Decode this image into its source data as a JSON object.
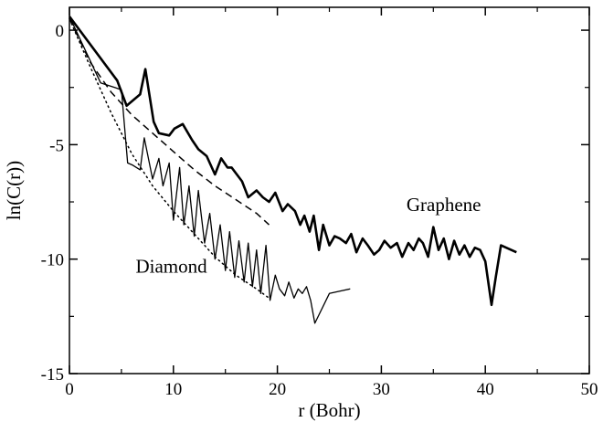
{
  "chart_data": {
    "type": "line",
    "title": "",
    "xlabel": "r (Bohr)",
    "ylabel": "ln(C(r))",
    "xlim": [
      0,
      50
    ],
    "ylim": [
      -15,
      1
    ],
    "xticks": [
      0,
      10,
      20,
      30,
      40,
      50
    ],
    "yticks": [
      0,
      -5,
      -10,
      -15
    ],
    "grid": false,
    "legend": "none",
    "annotations": [
      {
        "text": "Graphene",
        "x": 36.0,
        "y": -7.9
      },
      {
        "text": "Diamond",
        "x": 9.8,
        "y": -10.6
      }
    ],
    "series": [
      {
        "style": "thick-solid",
        "color": "#000000",
        "x": [
          0,
          4.6,
          5.5,
          6.8,
          7.3,
          8.1,
          8.6,
          9.6,
          10.1,
          10.9,
          11.8,
          12.4,
          13.2,
          14.0,
          14.6,
          15.2,
          15.6,
          16.6,
          17.2,
          18.0,
          18.6,
          19.2,
          19.8,
          20.5,
          21.0,
          21.7,
          22.2,
          22.6,
          23.1,
          23.5,
          24.0,
          24.4,
          25.0,
          25.5,
          26.0,
          26.6,
          27.1,
          27.6,
          28.2,
          28.7,
          29.3,
          29.8,
          30.3,
          30.9,
          31.5,
          32.0,
          32.6,
          33.1,
          33.6,
          34.0,
          34.5,
          35.0,
          35.5,
          36.0,
          36.5,
          37.0,
          37.5,
          38.0,
          38.5,
          39.0,
          39.5,
          40.0,
          40.6,
          41.0,
          41.5,
          43.0
        ],
        "y": [
          0.6,
          -2.2,
          -3.3,
          -2.8,
          -1.7,
          -4.0,
          -4.5,
          -4.6,
          -4.3,
          -4.1,
          -4.8,
          -5.2,
          -5.5,
          -6.3,
          -5.6,
          -6.0,
          -6.0,
          -6.6,
          -7.3,
          -7.0,
          -7.3,
          -7.5,
          -7.1,
          -7.9,
          -7.6,
          -7.9,
          -8.5,
          -8.1,
          -8.8,
          -8.1,
          -9.6,
          -8.5,
          -9.4,
          -9.0,
          -9.1,
          -9.3,
          -8.9,
          -9.7,
          -9.1,
          -9.4,
          -9.8,
          -9.6,
          -9.2,
          -9.5,
          -9.3,
          -9.9,
          -9.3,
          -9.6,
          -9.1,
          -9.3,
          -9.9,
          -8.6,
          -9.6,
          -9.1,
          -10.0,
          -9.2,
          -9.8,
          -9.4,
          -9.9,
          -9.5,
          -9.6,
          -10.1,
          -12.0,
          -10.8,
          -9.4,
          -9.7
        ]
      },
      {
        "style": "thin-solid",
        "color": "#000000",
        "x": [
          0,
          3.0,
          5.0,
          5.6,
          6.1,
          6.8,
          7.2,
          8.0,
          8.6,
          9.0,
          9.6,
          10.0,
          10.6,
          11.0,
          11.5,
          12.0,
          12.4,
          13.0,
          13.5,
          14.0,
          14.5,
          15.0,
          15.4,
          15.9,
          16.3,
          16.8,
          17.2,
          17.6,
          18.0,
          18.4,
          18.9,
          19.3,
          19.8,
          20.2,
          20.7,
          21.1,
          21.6,
          22.0,
          22.4,
          22.8,
          23.2,
          23.6,
          25.0,
          26.0,
          27.0
        ],
        "y": [
          0.6,
          -2.3,
          -2.6,
          -5.8,
          -5.9,
          -6.1,
          -4.7,
          -6.5,
          -5.6,
          -6.8,
          -5.8,
          -8.3,
          -6.0,
          -8.5,
          -6.8,
          -9.0,
          -7.0,
          -9.3,
          -8.0,
          -10.0,
          -8.5,
          -10.5,
          -8.8,
          -10.8,
          -9.2,
          -11.0,
          -9.3,
          -11.2,
          -9.6,
          -11.5,
          -9.4,
          -11.8,
          -10.7,
          -11.3,
          -11.6,
          -11.0,
          -11.7,
          -11.3,
          -11.5,
          -11.2,
          -11.8,
          -12.8,
          -11.5,
          -11.4,
          -11.3
        ]
      },
      {
        "style": "dashed",
        "color": "#000000",
        "x": [
          0,
          2,
          4,
          6,
          8,
          10,
          12,
          14,
          16,
          18,
          19.2
        ],
        "y": [
          0.5,
          -1.4,
          -2.7,
          -3.7,
          -4.5,
          -5.3,
          -6.1,
          -6.8,
          -7.4,
          -8.0,
          -8.5
        ]
      },
      {
        "style": "dotted",
        "color": "#000000",
        "x": [
          0,
          2,
          4,
          6,
          8,
          10,
          12,
          14,
          16,
          18,
          19.2
        ],
        "y": [
          0.5,
          -1.6,
          -3.6,
          -5.4,
          -6.8,
          -7.9,
          -8.9,
          -9.9,
          -10.7,
          -11.3,
          -11.7
        ]
      }
    ]
  }
}
